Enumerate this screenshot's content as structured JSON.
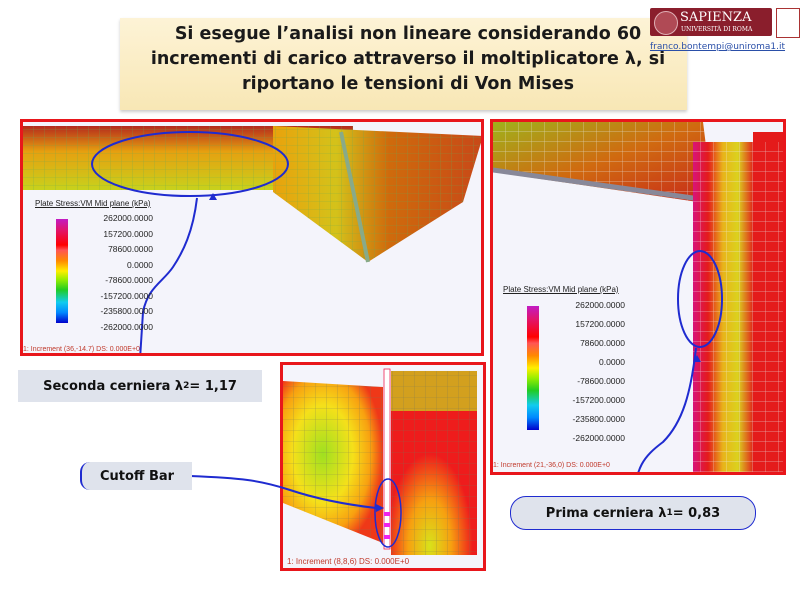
{
  "title": "Si esegue l’analisi non lineare considerando 60 incrementi di carico attraverso il moltiplicatore λ, si riportano le tensioni di Von Mises",
  "header": {
    "logo_text": "SAPIENZA",
    "logo_sub": "UNIVERSITÀ DI ROMA",
    "email": "franco.bontempi@uniroma1.it"
  },
  "legend": {
    "title": "Plate Stress:VM Mid plane (kPa)",
    "values": [
      "262000.0000",
      "157200.0000",
      "78600.0000",
      "0.0000",
      "-78600.0000",
      "-157200.0000",
      "-235800.0000",
      "-262000.0000"
    ]
  },
  "panels": {
    "left_increment": "1: Increment  (36,-14.7)  DS: 0.000E+0",
    "right_increment": "1: Increment  (21,-36,0)  DS: 0.000E+0",
    "bottom_increment": "1: Increment  (8,8,6)  DS: 0.000E+0"
  },
  "callouts": {
    "second_hinge": {
      "text": "Seconda cerniera λ",
      "sub": "2",
      "value": " = 1,17"
    },
    "cutoff_bar": "Cutoff Bar",
    "first_hinge": {
      "text": "Prima cerniera λ",
      "sub": "1",
      "value": " = 0,83"
    }
  },
  "colors": {
    "panel_border": "#e8161b",
    "annotation": "#1f2bd0",
    "title_bg": "#f8e7b5"
  }
}
